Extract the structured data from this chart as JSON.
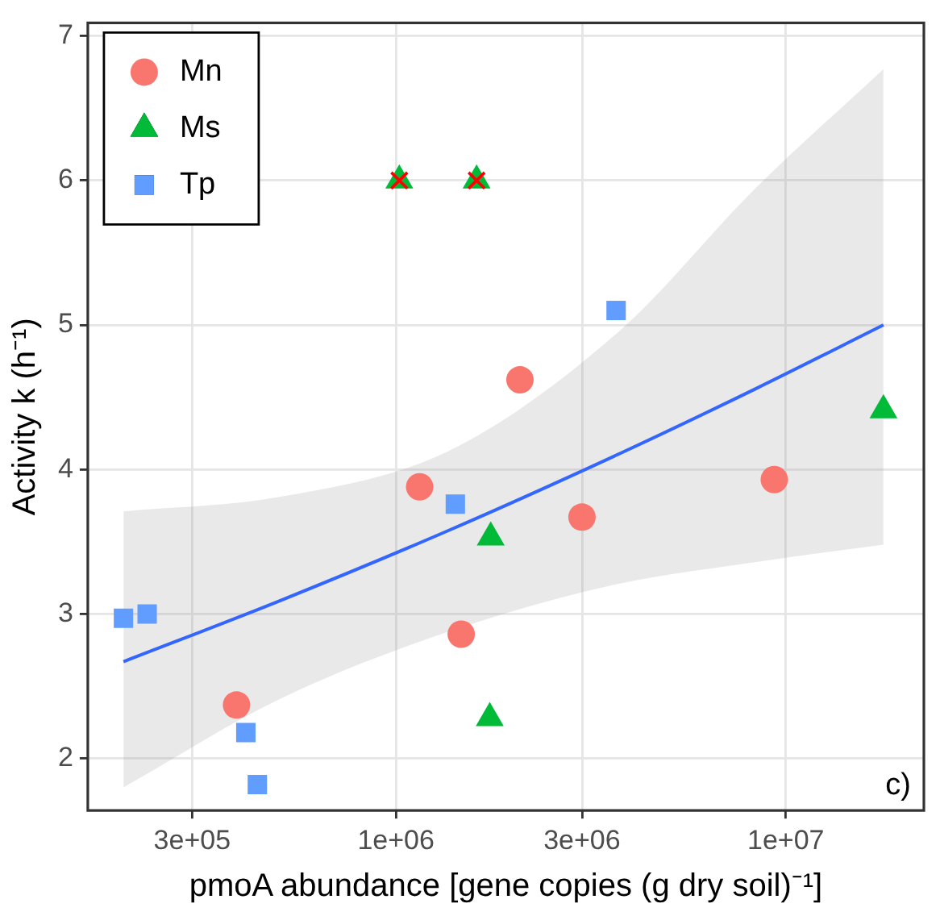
{
  "chart_data": {
    "type": "scatter",
    "xlabel": "pmoA abundance [gene copies (g dry soil)⁻¹]",
    "ylabel": "Activity k (h⁻¹)",
    "log": "x",
    "xlim": [
      162000,
      22600000
    ],
    "xticks": [
      {
        "value": 300000,
        "label": "3e+05"
      },
      {
        "value": 1000000,
        "label": "1e+06"
      },
      {
        "value": 3000000,
        "label": "3e+06"
      },
      {
        "value": 10000000,
        "label": "1e+07"
      }
    ],
    "ylim": [
      1.64,
      7.09
    ],
    "yticks": [
      2,
      3,
      4,
      5,
      6,
      7
    ],
    "grid": true,
    "legend": "top left",
    "annotations": [
      "c)"
    ],
    "series": [
      {
        "name": "Mn",
        "color": "#f8766d",
        "marker": "circle",
        "x": [
          1150000,
          2080000,
          3000000,
          9340000,
          1470000,
          390000
        ],
        "values": [
          3.88,
          4.62,
          3.67,
          3.93,
          2.86,
          2.37
        ]
      },
      {
        "name": "Ms",
        "color": "#00ba38",
        "marker": "triangle",
        "x": [
          1020000,
          1610000,
          17800000,
          1750000,
          1740000
        ],
        "values": [
          6,
          6,
          4.41,
          3.53,
          2.28
        ]
      },
      {
        "name": "Tp",
        "color": "#619cff",
        "marker": "square",
        "x": [
          3670000,
          1420000,
          200000,
          230000,
          412000,
          441000
        ],
        "values": [
          5.1,
          3.76,
          2.97,
          3.0,
          2.18,
          1.82
        ]
      },
      {
        "color": "#ff0000",
        "marker": "cross",
        "x": [
          1020000,
          1610000
        ],
        "values": [
          6,
          6
        ]
      },
      {
        "type": "line",
        "color": "#3366ff",
        "line_style": "solid",
        "x": [
          200000,
          502000,
          1370000,
          3750000,
          8390000,
          17800000
        ],
        "values": [
          2.67,
          3.09,
          3.58,
          4.11,
          4.56,
          5.0
        ],
        "lower": [
          1.8,
          2.41,
          2.88,
          3.21,
          3.36,
          3.48
        ],
        "upper": [
          3.71,
          3.81,
          4.13,
          4.96,
          5.95,
          6.77
        ]
      }
    ]
  }
}
